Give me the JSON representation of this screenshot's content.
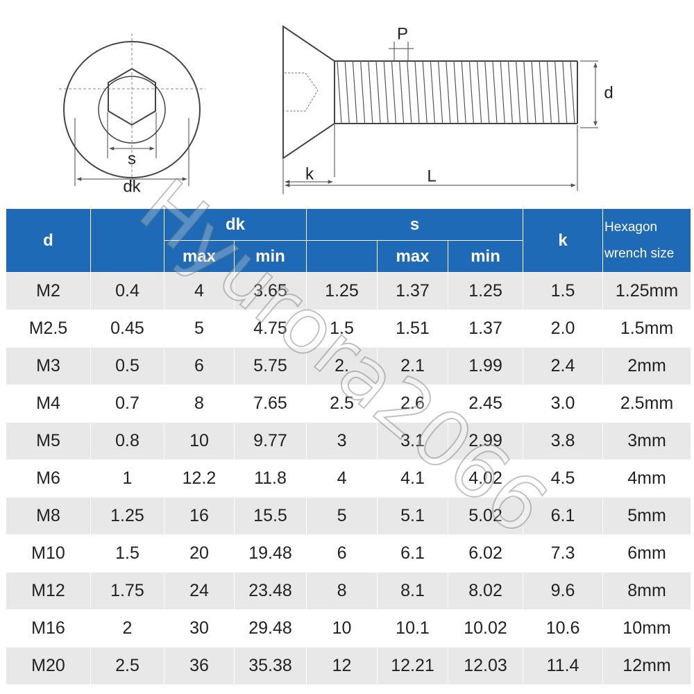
{
  "diagram": {
    "labels": {
      "s": "s",
      "dk": "dk",
      "P": "P",
      "d": "d",
      "k": "k",
      "L": "L"
    },
    "watermark": "Hyurora2066"
  },
  "table": {
    "header": {
      "d": "d",
      "dk": "dk",
      "dk_max": "max",
      "dk_min": "min",
      "s": "s",
      "s_max": "max",
      "s_min": "min",
      "k": "k",
      "wrench": "Hexagon wrench size"
    },
    "rows": [
      [
        "M2",
        "0.4",
        "4",
        "3.65",
        "1.25",
        "1.37",
        "1.25",
        "1.5",
        "1.25mm"
      ],
      [
        "M2.5",
        "0.45",
        "5",
        "4.75",
        "1.5",
        "1.51",
        "1.37",
        "2.0",
        "1.5mm"
      ],
      [
        "M3",
        "0.5",
        "6",
        "5.75",
        "2.",
        "2.1",
        "1.99",
        "2.4",
        "2mm"
      ],
      [
        "M4",
        "0.7",
        "8",
        "7.65",
        "2.5",
        "2.6",
        "2.45",
        "3.0",
        "2.5mm"
      ],
      [
        "M5",
        "0.8",
        "10",
        "9.77",
        "3",
        "3.1",
        "2.99",
        "3.8",
        "3mm"
      ],
      [
        "M6",
        "1",
        "12.2",
        "11.8",
        "4",
        "4.1",
        "4.02",
        "4.5",
        "4mm"
      ],
      [
        "M8",
        "1.25",
        "16",
        "15.5",
        "5",
        "5.1",
        "5.02",
        "6.1",
        "5mm"
      ],
      [
        "M10",
        "1.5",
        "20",
        "19.48",
        "6",
        "6.1",
        "6.02",
        "7.3",
        "6mm"
      ],
      [
        "M12",
        "1.75",
        "24",
        "23.48",
        "8",
        "8.1",
        "8.02",
        "9.6",
        "8mm"
      ],
      [
        "M16",
        "2",
        "30",
        "29.48",
        "10",
        "10.1",
        "10.02",
        "10.6",
        "10mm"
      ],
      [
        "M20",
        "2.5",
        "36",
        "35.38",
        "12",
        "12.21",
        "12.03",
        "11.4",
        "12mm"
      ]
    ]
  }
}
